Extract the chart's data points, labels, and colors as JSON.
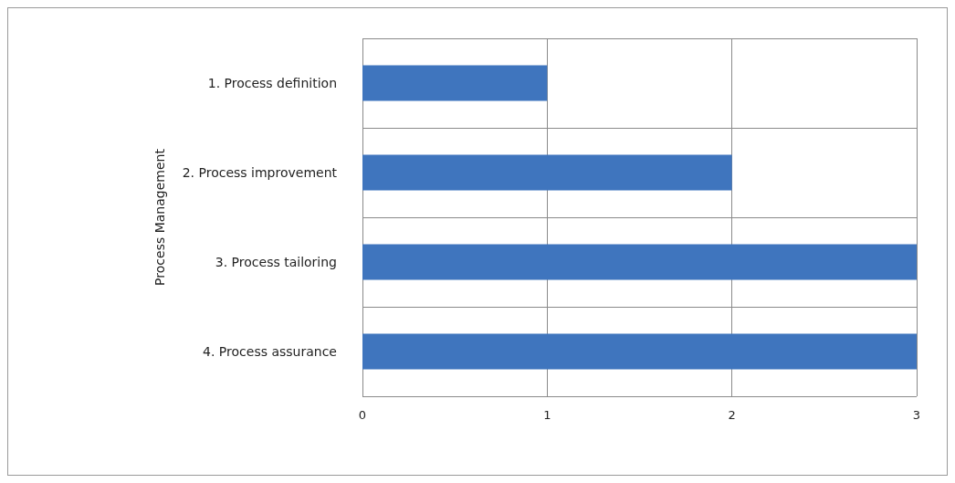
{
  "chart_data": {
    "type": "bar",
    "orientation": "horizontal",
    "ylabel": "Process Management",
    "categories": [
      "1. Process definition",
      "2. Process improvement",
      "3. Process tailoring",
      "4. Process assurance"
    ],
    "values": [
      1,
      2,
      3,
      3
    ],
    "color": "#3f75be",
    "xlim": [
      0,
      3
    ],
    "xticks": [
      0,
      1,
      2,
      3
    ],
    "grid": true
  }
}
